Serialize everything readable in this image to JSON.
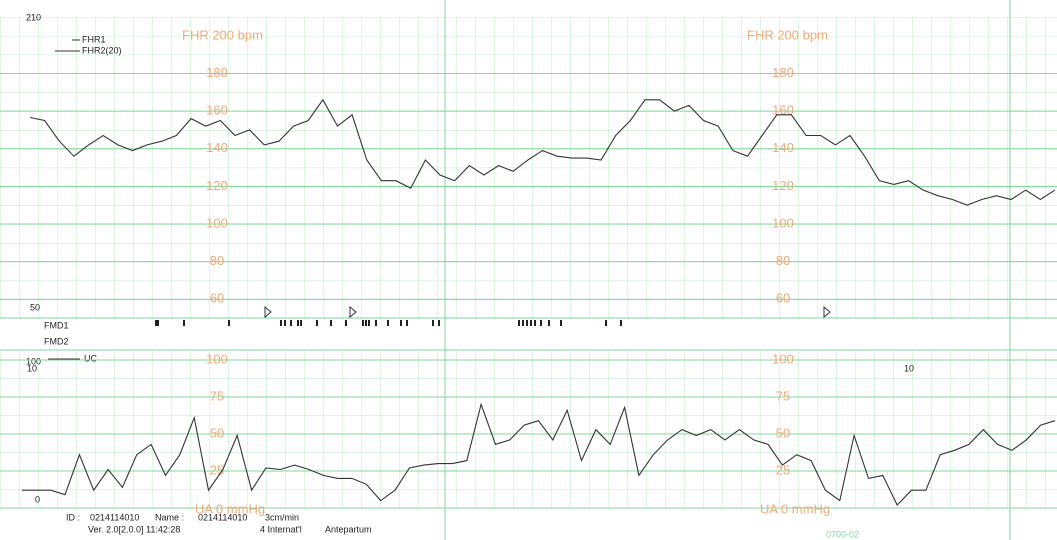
{
  "chart_data": [
    {
      "type": "line",
      "label": "FHR 200 bpm",
      "ylim": [
        50,
        210
      ],
      "yticks": [
        60,
        80,
        100,
        120,
        140,
        160,
        180
      ],
      "grid": true,
      "series": [
        {
          "name": "FHR1",
          "color": "#333333",
          "values": [
            156.6,
            155,
            144,
            136,
            142,
            147,
            142,
            139,
            142,
            144,
            147,
            156,
            152,
            155,
            147,
            150,
            142,
            144,
            152,
            155,
            166,
            152,
            158,
            134,
            123,
            123,
            119,
            134,
            126,
            123,
            131,
            126,
            131,
            128,
            134,
            139,
            136,
            135,
            135,
            134,
            147,
            155,
            166,
            166,
            160,
            163,
            155,
            152,
            139,
            136,
            147,
            158,
            158,
            147,
            147,
            142,
            147,
            136,
            123,
            121,
            123,
            118,
            115,
            113,
            110,
            113,
            115,
            113,
            118,
            113,
            118
          ]
        }
      ],
      "legend_extra": [
        "FHR2(20)"
      ]
    },
    {
      "type": "line",
      "label": "UA 0 mmHg",
      "ylim": [
        0,
        100
      ],
      "yticks": [
        25,
        50,
        75,
        100
      ],
      "grid": true,
      "series": [
        {
          "name": "UC",
          "color": "#333333",
          "values": [
            12,
            12,
            12,
            9,
            36,
            12,
            26,
            14,
            36,
            43,
            22,
            36,
            61,
            12,
            26,
            49,
            12,
            27,
            26,
            29,
            26,
            22,
            20,
            20,
            16,
            5,
            12,
            27,
            29,
            30,
            30,
            32,
            70,
            43,
            46,
            56,
            59,
            46,
            66,
            32,
            53,
            43,
            68,
            22,
            36,
            46,
            53,
            49,
            53,
            46,
            53,
            46,
            43,
            29,
            36,
            32,
            12,
            5,
            49,
            20,
            22,
            2,
            12,
            12,
            36,
            39,
            43,
            53,
            43,
            39,
            46,
            56,
            59
          ]
        }
      ]
    }
  ],
  "annotations": {
    "fmd1": "FMD1",
    "fmd2": "FMD2",
    "uc_mark_left": "10",
    "uc_mark_right": "10"
  },
  "footer": {
    "id_label": "ID :",
    "id": "0214114010",
    "name_label": "Name :",
    "name": "0214114010",
    "speed": "3cm/min",
    "version": "Ver. 2.0[2.0.0] 11:42:28",
    "mode": "4  Internat'l",
    "type": "Antepartum",
    "paper": "0700-02"
  }
}
